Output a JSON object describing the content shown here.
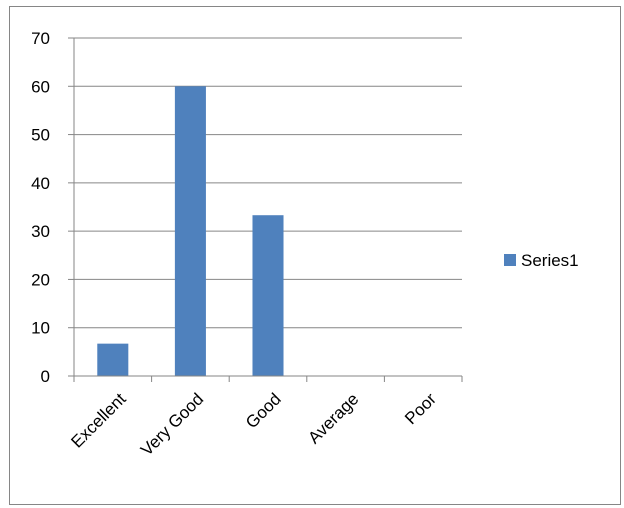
{
  "chart_data": {
    "type": "bar",
    "categories": [
      "Excellent",
      "Very Good",
      "Good",
      "Average",
      "Poor"
    ],
    "series": [
      {
        "name": "Series1",
        "values": [
          6.7,
          60,
          33.3,
          0,
          0
        ],
        "color": "#4f81bd"
      }
    ],
    "ylim": [
      0,
      70
    ],
    "yticks": [
      0,
      10,
      20,
      30,
      40,
      50,
      60,
      70
    ],
    "grid": true,
    "legend": "right",
    "title": "",
    "xlabel": "",
    "ylabel": ""
  }
}
